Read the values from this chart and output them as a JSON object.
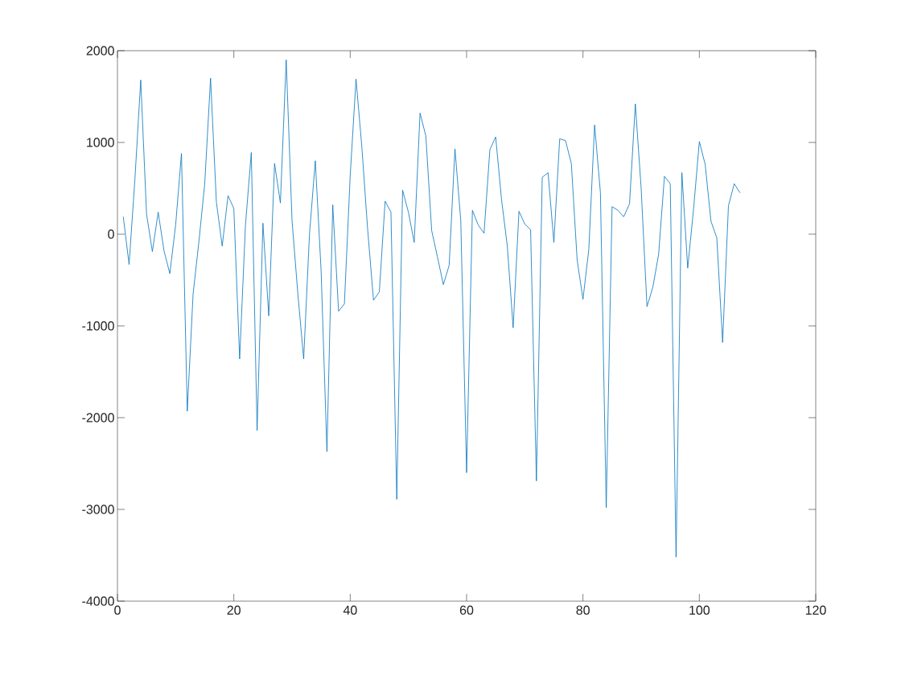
{
  "chart_data": {
    "type": "line",
    "x": [
      1,
      2,
      3,
      4,
      5,
      6,
      7,
      8,
      9,
      10,
      11,
      12,
      13,
      14,
      15,
      16,
      17,
      18,
      19,
      20,
      21,
      22,
      23,
      24,
      25,
      26,
      27,
      28,
      29,
      30,
      31,
      32,
      33,
      34,
      35,
      36,
      37,
      38,
      39,
      40,
      41,
      42,
      43,
      44,
      45,
      46,
      47,
      48,
      49,
      50,
      51,
      52,
      53,
      54,
      55,
      56,
      57,
      58,
      59,
      60,
      61,
      62,
      63,
      64,
      65,
      66,
      67,
      68,
      69,
      70,
      71,
      72,
      73,
      74,
      75,
      76,
      77,
      78,
      79,
      80,
      81,
      82,
      83,
      84,
      85,
      86,
      87,
      88,
      89,
      90,
      91,
      92,
      93,
      94,
      95,
      96,
      97,
      98,
      99,
      100,
      101,
      102,
      103,
      104,
      105,
      106,
      107
    ],
    "series": [
      {
        "color": "#0072bd",
        "values": [
          190,
          -330,
          600,
          1680,
          220,
          -190,
          240,
          -180,
          -430,
          100,
          880,
          -1930,
          -650,
          -80,
          550,
          1700,
          350,
          -130,
          420,
          280,
          -1360,
          100,
          890,
          -2140,
          120,
          -890,
          770,
          340,
          1900,
          150,
          -650,
          -1360,
          0,
          800,
          -400,
          -2370,
          320,
          -840,
          -760,
          640,
          1690,
          950,
          50,
          -720,
          -630,
          360,
          240,
          -2890,
          480,
          240,
          -90,
          1320,
          1070,
          40,
          -250,
          -550,
          -340,
          930,
          150,
          -2600,
          260,
          100,
          10,
          920,
          1060,
          380,
          -130,
          -1020,
          250,
          110,
          50,
          -2690,
          620,
          670,
          -90,
          1040,
          1020,
          770,
          -280,
          -710,
          -170,
          1190,
          450,
          -2980,
          300,
          260,
          190,
          330,
          1420,
          500,
          -790,
          -580,
          -220,
          630,
          550,
          -3520,
          670,
          -370,
          270,
          1010,
          760,
          140,
          -40,
          -1180,
          310,
          550,
          450
        ]
      }
    ],
    "xlim": [
      0,
      120
    ],
    "ylim": [
      -4000,
      2000
    ],
    "xticks": [
      0,
      20,
      40,
      60,
      80,
      100,
      120
    ],
    "yticks": [
      -4000,
      -3000,
      -2000,
      -1000,
      0,
      1000,
      2000
    ],
    "grid": false,
    "marker": "none",
    "line_style": "solid"
  }
}
